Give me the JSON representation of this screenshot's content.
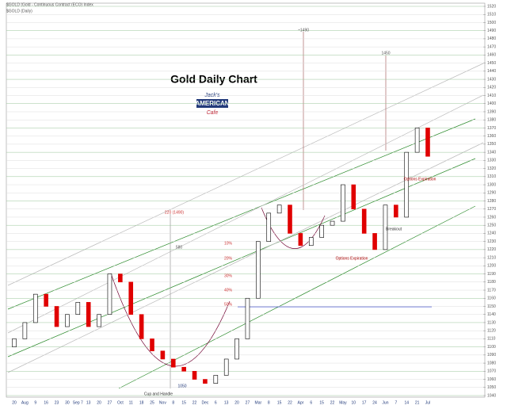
{
  "chart_data": {
    "type": "candlestick",
    "header": "$GOLD (Gold - Continuous Contract (ECO) Index",
    "subheader": "$GOLD (Daily)",
    "title": "Gold Daily Chart",
    "logo": [
      "Jack's",
      "AMERICAN",
      "Cafe"
    ],
    "annotations": [
      "~1490",
      "1450",
      "220 (1490)",
      "580",
      "1050",
      "Cup and Handle",
      "Breakout",
      "Options Expiration",
      "Options Expiration",
      "10%",
      "20%",
      "30%",
      "40%",
      "50%"
    ],
    "categories": [
      "20",
      "Aug",
      "9",
      "16",
      "23",
      "30",
      "Sep 7",
      "13",
      "20",
      "27",
      "Oct",
      "11",
      "18",
      "25",
      "Nov",
      "8",
      "15",
      "22",
      "Dec",
      "6",
      "13",
      "20",
      "27",
      "Mar",
      "8",
      "15",
      "22",
      "Apr",
      "6",
      "15",
      "22",
      "May",
      "10",
      "17",
      "24",
      "Jun",
      "7",
      "14",
      "21",
      "Jul"
    ],
    "open": [
      1100,
      1110,
      1130,
      1165,
      1150,
      1125,
      1140,
      1155,
      1125,
      1140,
      1190,
      1180,
      1140,
      1110,
      1095,
      1085,
      1075,
      1070,
      1060,
      1055,
      1065,
      1085,
      1110,
      1160,
      1230,
      1265,
      1275,
      1240,
      1225,
      1235,
      1250,
      1255,
      1300,
      1270,
      1240,
      1220,
      1275,
      1260,
      1340,
      1370
    ],
    "close": [
      1110,
      1130,
      1165,
      1150,
      1125,
      1140,
      1155,
      1125,
      1140,
      1190,
      1180,
      1140,
      1110,
      1095,
      1085,
      1075,
      1070,
      1060,
      1055,
      1065,
      1085,
      1110,
      1160,
      1230,
      1265,
      1275,
      1240,
      1225,
      1235,
      1250,
      1255,
      1300,
      1270,
      1240,
      1220,
      1275,
      1260,
      1340,
      1370,
      1335
    ],
    "up_color": "#000000",
    "down_color": "#e00000",
    "ylim": [
      1040,
      1520
    ],
    "yticks": [
      1040,
      1050,
      1060,
      1070,
      1080,
      1090,
      1100,
      1110,
      1120,
      1130,
      1140,
      1150,
      1160,
      1170,
      1180,
      1190,
      1200,
      1210,
      1220,
      1230,
      1240,
      1250,
      1260,
      1270,
      1280,
      1290,
      1300,
      1310,
      1320,
      1330,
      1340,
      1350,
      1360,
      1370,
      1380,
      1390,
      1400,
      1410,
      1420,
      1430,
      1440,
      1450,
      1460,
      1470,
      1480,
      1490,
      1500,
      1510,
      1520
    ],
    "grid": true
  }
}
